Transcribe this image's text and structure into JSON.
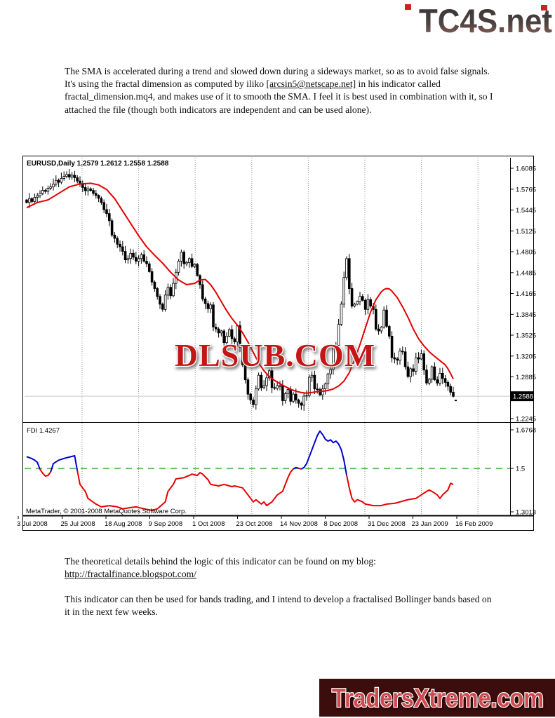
{
  "header_logo": {
    "text": "TC4S.net",
    "accent_color": "#cc2222",
    "gradient_top": "#3a3a3a",
    "gradient_bottom": "#9a635d"
  },
  "paragraph1": {
    "pre": "The SMA is accelerated during a trend and slowed down during a sideways market, so as to avoid false signals. It's using the fractal dimension as computed by iliko ",
    "link": "[arcsin5@netscape.net]",
    "post": " in his indicator called fractal_dimension.mq4, and makes use of it to smooth the SMA. I feel it is best used in combination with it, so I attached the file (though both indicators are independent and can be used alone)."
  },
  "paragraph2": {
    "text": "The theoretical details behind the logic of this indicator can be found on my blog:",
    "link": "http://fractalfinance.blogspot.com/"
  },
  "paragraph3": {
    "text": "This indicator can then be used for bands trading, and I intend to develop a fractalised Bollinger bands based on it in the next few weeks."
  },
  "watermark": {
    "text": "DLSUB.COM",
    "fill": "#c41818"
  },
  "footer_logo": {
    "text": "TradersXtreme.com",
    "bg": "#3b0d0d",
    "fill": "#cf4b50"
  },
  "chart_data": {
    "type": "candlestick",
    "title": "EURUSD,Daily  1.2579 1.2612 1.2558 1.2588",
    "symbol": "EURUSD",
    "timeframe": "Daily",
    "quote": {
      "open": 1.2579,
      "high": 1.2612,
      "low": 1.2558,
      "close": 1.2588
    },
    "current_price": 1.2588,
    "x_ticks": [
      "3 Jul 2008",
      "25 Jul 2008",
      "18 Aug 2008",
      "9 Sep 2008",
      "1 Oct 2008",
      "23 Oct 2008",
      "14 Nov 2008",
      "8 Dec 2008",
      "31 Dec 2008",
      "23 Jan 2009",
      "16 Feb 2009"
    ],
    "y_ticks": [
      1.6085,
      1.5765,
      1.5445,
      1.5125,
      1.4805,
      1.4485,
      1.4165,
      1.3845,
      1.3525,
      1.3205,
      1.2885,
      1.2245
    ],
    "ylim": [
      1.2245,
      1.6085
    ],
    "grid": "vertical-dotted",
    "closes": [
      1.556,
      1.562,
      1.5575,
      1.564,
      1.5665,
      1.57,
      1.5745,
      1.573,
      1.578,
      1.58,
      1.584,
      1.59,
      1.587,
      1.593,
      1.596,
      1.599,
      1.595,
      1.598,
      1.594,
      1.589,
      1.584,
      1.579,
      1.574,
      1.577,
      1.5745,
      1.57,
      1.567,
      1.5625,
      1.556,
      1.545,
      1.539,
      1.528,
      1.506,
      1.501,
      1.492,
      1.488,
      1.481,
      1.468,
      1.47,
      1.478,
      1.472,
      1.466,
      1.47,
      1.476,
      1.466,
      1.462,
      1.45,
      1.434,
      1.424,
      1.412,
      1.4,
      1.392,
      1.414,
      1.426,
      1.413,
      1.432,
      1.449,
      1.466,
      1.48,
      1.462,
      1.464,
      1.47,
      1.458,
      1.461,
      1.444,
      1.43,
      1.408,
      1.401,
      1.393,
      1.399,
      1.365,
      1.362,
      1.356,
      1.359,
      1.341,
      1.351,
      1.361,
      1.347,
      1.342,
      1.367,
      1.334,
      1.307,
      1.284,
      1.262,
      1.253,
      1.246,
      1.27,
      1.291,
      1.272,
      1.275,
      1.287,
      1.298,
      1.272,
      1.271,
      1.275,
      1.275,
      1.252,
      1.263,
      1.269,
      1.251,
      1.262,
      1.253,
      1.248,
      1.245,
      1.259,
      1.26,
      1.288,
      1.291,
      1.27,
      1.269,
      1.261,
      1.27,
      1.278,
      1.293,
      1.3,
      1.333,
      1.337,
      1.369,
      1.4,
      1.441,
      1.47,
      1.424,
      1.397,
      1.4,
      1.404,
      1.412,
      1.406,
      1.392,
      1.407,
      1.397,
      1.392,
      1.362,
      1.359,
      1.365,
      1.391,
      1.366,
      1.351,
      1.318,
      1.316,
      1.314,
      1.328,
      1.327,
      1.304,
      1.289,
      1.301,
      1.297,
      1.318,
      1.316,
      1.324,
      1.299,
      1.279,
      1.285,
      1.304,
      1.284,
      1.279,
      1.294,
      1.286,
      1.28,
      1.274,
      1.265,
      1.2588
    ],
    "sma_points": [
      [
        0,
        1.548
      ],
      [
        4,
        1.556
      ],
      [
        8,
        1.56
      ],
      [
        12,
        1.57
      ],
      [
        16,
        1.58
      ],
      [
        20,
        1.5845
      ],
      [
        24,
        1.5855
      ],
      [
        27,
        1.583
      ],
      [
        30,
        1.576
      ],
      [
        33,
        1.562
      ],
      [
        36,
        1.543
      ],
      [
        39,
        1.524
      ],
      [
        42,
        1.505
      ],
      [
        45,
        1.488
      ],
      [
        48,
        1.475
      ],
      [
        51,
        1.463
      ],
      [
        54,
        1.449
      ],
      [
        57,
        1.437
      ],
      [
        60,
        1.43
      ],
      [
        63,
        1.432
      ],
      [
        65,
        1.437
      ],
      [
        67,
        1.438
      ],
      [
        69,
        1.43
      ],
      [
        71,
        1.418
      ],
      [
        73,
        1.404
      ],
      [
        75,
        1.39
      ],
      [
        77,
        1.378
      ],
      [
        79,
        1.368
      ],
      [
        81,
        1.356
      ],
      [
        83,
        1.342
      ],
      [
        85,
        1.326
      ],
      [
        87,
        1.31
      ],
      [
        89,
        1.298
      ],
      [
        91,
        1.289
      ],
      [
        93,
        1.283
      ],
      [
        95,
        1.278
      ],
      [
        97,
        1.2735
      ],
      [
        99,
        1.2695
      ],
      [
        101,
        1.2665
      ],
      [
        103,
        1.2645
      ],
      [
        105,
        1.2635
      ],
      [
        107,
        1.2645
      ],
      [
        109,
        1.266
      ],
      [
        111,
        1.2665
      ],
      [
        113,
        1.2675
      ],
      [
        115,
        1.27
      ],
      [
        117,
        1.2745
      ],
      [
        119,
        1.282
      ],
      [
        121,
        1.295
      ],
      [
        123,
        1.315
      ],
      [
        125,
        1.338
      ],
      [
        127,
        1.363
      ],
      [
        129,
        1.388
      ],
      [
        131,
        1.407
      ],
      [
        133,
        1.419
      ],
      [
        134,
        1.4225
      ],
      [
        135,
        1.424
      ],
      [
        136,
        1.4235
      ],
      [
        137,
        1.42
      ],
      [
        139,
        1.41
      ],
      [
        141,
        1.396
      ],
      [
        143,
        1.38
      ],
      [
        145,
        1.362
      ],
      [
        147,
        1.347
      ],
      [
        149,
        1.336
      ],
      [
        151,
        1.327
      ],
      [
        153,
        1.32
      ],
      [
        155,
        1.3135
      ],
      [
        157,
        1.307
      ],
      [
        158,
        1.301
      ],
      [
        159,
        1.2935
      ],
      [
        160,
        1.2855
      ]
    ],
    "subpanel": {
      "label": "FDI 1.4267",
      "value": 1.4267,
      "threshold": 1.5,
      "y_ticks": [
        1.6768,
        1.5,
        1.3013
      ],
      "ylim": [
        1.3013,
        1.6768
      ],
      "points": [
        [
          0,
          1.554
        ],
        [
          2,
          1.545
        ],
        [
          3,
          1.538
        ],
        [
          4,
          1.528
        ],
        [
          5,
          1.496
        ],
        [
          6,
          1.478
        ],
        [
          7,
          1.465
        ],
        [
          8,
          1.468
        ],
        [
          9,
          1.484
        ],
        [
          10,
          1.522
        ],
        [
          12,
          1.538
        ],
        [
          14,
          1.546
        ],
        [
          16,
          1.552
        ],
        [
          18,
          1.558
        ],
        [
          19,
          1.49
        ],
        [
          20,
          1.427
        ],
        [
          22,
          1.395
        ],
        [
          23,
          1.363
        ],
        [
          26,
          1.337
        ],
        [
          28,
          1.324
        ],
        [
          31,
          1.33
        ],
        [
          34,
          1.324
        ],
        [
          36,
          1.315
        ],
        [
          39,
          1.321
        ],
        [
          41,
          1.324
        ],
        [
          44,
          1.315
        ],
        [
          47,
          1.308
        ],
        [
          49,
          1.315
        ],
        [
          52,
          1.347
        ],
        [
          53,
          1.395
        ],
        [
          55,
          1.427
        ],
        [
          56,
          1.452
        ],
        [
          59,
          1.458
        ],
        [
          61,
          1.468
        ],
        [
          62,
          1.474
        ],
        [
          64,
          1.468
        ],
        [
          65,
          1.481
        ],
        [
          66,
          1.474
        ],
        [
          68,
          1.449
        ],
        [
          69,
          1.427
        ],
        [
          72,
          1.42
        ],
        [
          74,
          1.427
        ],
        [
          77,
          1.417
        ],
        [
          78,
          1.42
        ],
        [
          81,
          1.411
        ],
        [
          82,
          1.395
        ],
        [
          84,
          1.363
        ],
        [
          85,
          1.347
        ],
        [
          86,
          1.357
        ],
        [
          88,
          1.337
        ],
        [
          89,
          1.347
        ],
        [
          90,
          1.33
        ],
        [
          92,
          1.347
        ],
        [
          93,
          1.363
        ],
        [
          94,
          1.379
        ],
        [
          96,
          1.395
        ],
        [
          97,
          1.427
        ],
        [
          98,
          1.458
        ],
        [
          99,
          1.484
        ],
        [
          100,
          1.498
        ],
        [
          101,
          1.504
        ],
        [
          102,
          1.501
        ],
        [
          103,
          1.497
        ],
        [
          104,
          1.504
        ],
        [
          105,
          1.522
        ],
        [
          106,
          1.554
        ],
        [
          107,
          1.586
        ],
        [
          108,
          1.618
        ],
        [
          109,
          1.65
        ],
        [
          110,
          1.671
        ],
        [
          111,
          1.655
        ],
        [
          112,
          1.634
        ],
        [
          113,
          1.625
        ],
        [
          114,
          1.631
        ],
        [
          115,
          1.618
        ],
        [
          116,
          1.625
        ],
        [
          117,
          1.612
        ],
        [
          118,
          1.586
        ],
        [
          119,
          1.538
        ],
        [
          120,
          1.47
        ],
        [
          121,
          1.411
        ],
        [
          122,
          1.363
        ],
        [
          123,
          1.347
        ],
        [
          124,
          1.357
        ],
        [
          126,
          1.347
        ],
        [
          127,
          1.337
        ],
        [
          130,
          1.33
        ],
        [
          133,
          1.33
        ],
        [
          135,
          1.337
        ],
        [
          138,
          1.34
        ],
        [
          140,
          1.347
        ],
        [
          143,
          1.357
        ],
        [
          146,
          1.363
        ],
        [
          148,
          1.379
        ],
        [
          150,
          1.395
        ],
        [
          151,
          1.401
        ],
        [
          152,
          1.395
        ],
        [
          154,
          1.379
        ],
        [
          155,
          1.363
        ],
        [
          156,
          1.379
        ],
        [
          157,
          1.39
        ],
        [
          158,
          1.401
        ],
        [
          159,
          1.432
        ],
        [
          160,
          1.4267
        ]
      ]
    },
    "copyright": "MetaTrader, © 2001-2008 MetaQuotes Software Corp.",
    "colors": {
      "sma": "#e60000",
      "fdi_above": "#0000d0",
      "fdi_below": "#e60000",
      "threshold": "#63c063",
      "grid": "#8c8c8c",
      "bull": "#ffffff",
      "bear": "#000000",
      "current_line": "#c9c9c9",
      "badge_bg": "#000000",
      "badge_text": "#ffffff"
    }
  }
}
